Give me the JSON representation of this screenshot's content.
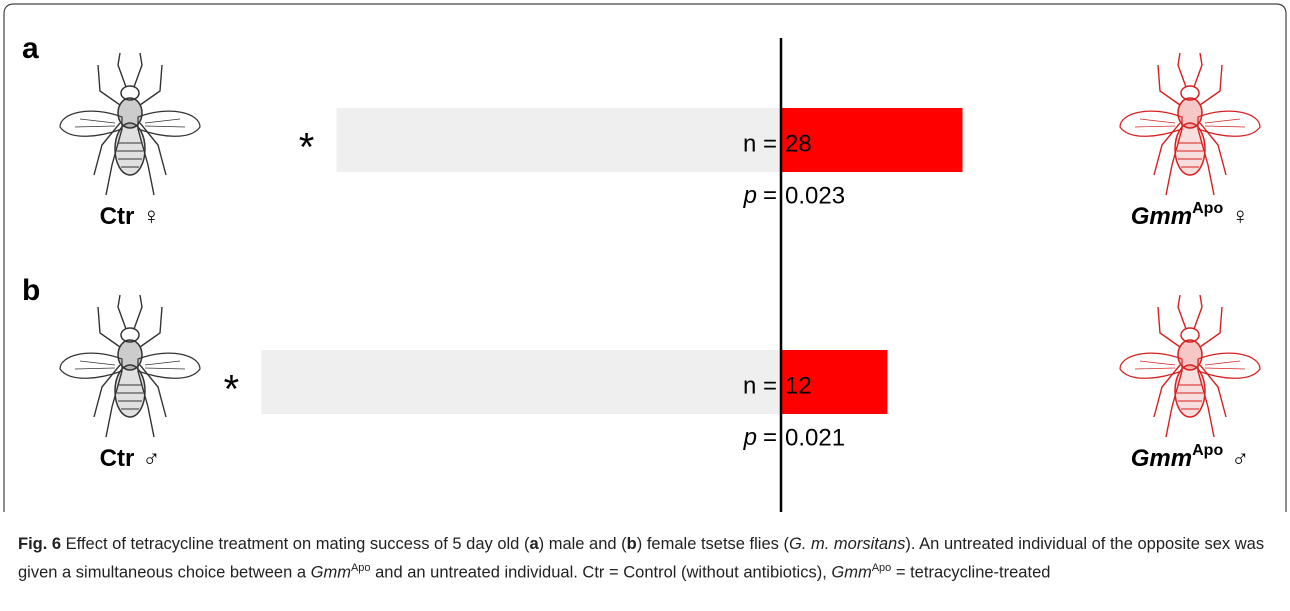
{
  "chart_data": [
    {
      "type": "bar",
      "panel": "a",
      "categories": [
        {
          "name": "Ctr",
          "sex": "♀"
        },
        {
          "name": "Gmm",
          "sup": "Apo",
          "sex": "♀"
        }
      ],
      "values": [
        71,
        29
      ],
      "colors": [
        "#efefef",
        "#ff0000"
      ],
      "significance": "*",
      "n_label": "n =",
      "n": 28,
      "p_symbol": "p",
      "p_eq": "=",
      "p": 0.023
    },
    {
      "type": "bar",
      "panel": "b",
      "categories": [
        {
          "name": "Ctr",
          "sex": "♂"
        },
        {
          "name": "Gmm",
          "sup": "Apo",
          "sex": "♂"
        }
      ],
      "values": [
        83,
        17
      ],
      "colors": [
        "#efefef",
        "#ff0000"
      ],
      "significance": "*",
      "n_label": "n =",
      "n": 12,
      "p_symbol": "p",
      "p_eq": "=",
      "p": 0.021
    }
  ],
  "caption": [
    {
      "text": "Fig. 6",
      "style": "bold"
    },
    {
      "text": " Effect of tetracycline treatment on mating success of 5 day old (",
      "style": "normal"
    },
    {
      "text": "a",
      "style": "bold"
    },
    {
      "text": ") male and (",
      "style": "normal"
    },
    {
      "text": "b",
      "style": "bold"
    },
    {
      "text": ") female tsetse flies (",
      "style": "normal"
    },
    {
      "text": "G. m. morsitans",
      "style": "italic"
    },
    {
      "text": "). An untreated individual of the opposite sex was given a simultaneous choice between a ",
      "style": "normal"
    },
    {
      "text": "Gmm",
      "style": "italic"
    },
    {
      "text": "Apo",
      "style": "sup"
    },
    {
      "text": " and an untreated individual. Ctr = Control (without antibiotics), ",
      "style": "normal"
    },
    {
      "text": "Gmm",
      "style": "italic"
    },
    {
      "text": "Apo",
      "style": "sup"
    },
    {
      "text": " = tetracycline-treated",
      "style": "normal"
    }
  ]
}
